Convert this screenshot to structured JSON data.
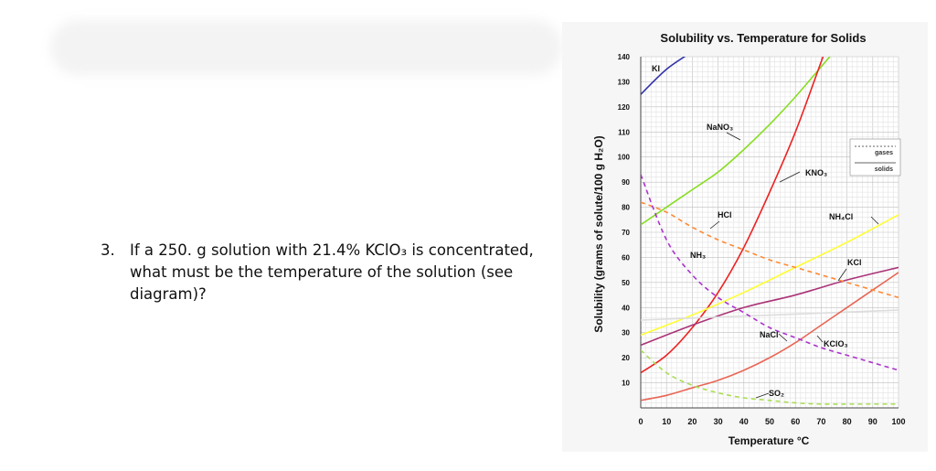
{
  "question": {
    "number": "3.",
    "text": "If a 250. g solution with 21.4% KClO₃ is concentrated, what must be the temperature of the solution (see diagram)?"
  },
  "chart_data": {
    "type": "line",
    "title": "Solubility vs. Temperature for Solids",
    "xlabel": "Temperature °C",
    "ylabel": "Solubility (grams of solute/100 g H₂O)",
    "xlim": [
      0,
      100
    ],
    "ylim": [
      0,
      140
    ],
    "x_ticks": [
      "0",
      "10",
      "20",
      "30",
      "40",
      "50",
      "60",
      "70",
      "80",
      "90",
      "100"
    ],
    "y_ticks": [
      "10",
      "20",
      "30",
      "40",
      "50",
      "60",
      "70",
      "80",
      "90",
      "100",
      "110",
      "120",
      "130",
      "140"
    ],
    "grid": true,
    "legend": {
      "placement": "top-right",
      "entries": [
        {
          "label": "gases",
          "style": "dashed"
        },
        {
          "label": "solids",
          "style": "solid"
        }
      ]
    },
    "series": [
      {
        "name": "KI",
        "color": "#3333aa",
        "dashed": false,
        "x": [
          0,
          10,
          20
        ],
        "y": [
          125,
          135,
          142
        ]
      },
      {
        "name": "NaNO₃",
        "color": "#88dd22",
        "dashed": false,
        "x": [
          0,
          10,
          20,
          30,
          40,
          50,
          60,
          70,
          80
        ],
        "y": [
          73,
          80,
          87,
          94,
          103,
          113,
          124,
          136,
          148
        ]
      },
      {
        "name": "KNO₃",
        "color": "#ee2222",
        "dashed": false,
        "x": [
          0,
          10,
          20,
          30,
          40,
          50,
          60,
          70,
          75
        ],
        "y": [
          14,
          21,
          32,
          46,
          64,
          86,
          110,
          138,
          152
        ]
      },
      {
        "name": "NH₄Cl",
        "color": "#ffff33",
        "dashed": false,
        "x": [
          0,
          20,
          40,
          60,
          80,
          100
        ],
        "y": [
          29,
          37,
          46,
          56,
          66,
          77
        ]
      },
      {
        "name": "KCl",
        "color": "#aa3377",
        "dashed": false,
        "x": [
          0,
          20,
          40,
          60,
          80,
          100
        ],
        "y": [
          25,
          33,
          40,
          45,
          51,
          56
        ]
      },
      {
        "name": "NaCl",
        "color": "#dddddd",
        "dashed": false,
        "x": [
          0,
          100
        ],
        "y": [
          35,
          39
        ]
      },
      {
        "name": "KClO₃",
        "color": "#e86655",
        "dashed": false,
        "x": [
          0,
          10,
          20,
          30,
          40,
          50,
          60,
          70,
          80,
          90,
          100
        ],
        "y": [
          3,
          5,
          8,
          11,
          15,
          20,
          26,
          33,
          40,
          47,
          54
        ]
      },
      {
        "name": "HCl",
        "color": "#ff8833",
        "dashed": true,
        "x": [
          0,
          10,
          20,
          30,
          40,
          50,
          60,
          70,
          80,
          90,
          100
        ],
        "y": [
          82,
          78,
          72,
          67,
          63,
          59,
          56,
          53,
          50,
          47,
          44
        ]
      },
      {
        "name": "NH₃",
        "color": "#aa33cc",
        "dashed": true,
        "x": [
          0,
          10,
          20,
          30,
          40,
          50,
          60,
          70,
          80,
          90,
          100
        ],
        "y": [
          93,
          67,
          53,
          44,
          38,
          32,
          28,
          24,
          21,
          18,
          15
        ]
      },
      {
        "name": "SO₂",
        "color": "#aadd55",
        "dashed": true,
        "x": [
          0,
          10,
          20,
          30,
          40,
          50,
          60,
          70,
          80,
          90,
          100
        ],
        "y": [
          23,
          14,
          9,
          6,
          4,
          3,
          2,
          1.5,
          1.5,
          1.5,
          1.5
        ]
      }
    ],
    "labels": [
      {
        "text": "KI",
        "series": "KI"
      },
      {
        "text": "NaNO₃",
        "series": "NaNO₃"
      },
      {
        "text": "KNO₃",
        "series": "KNO₃"
      },
      {
        "text": "HCl",
        "series": "HCl"
      },
      {
        "text": "NH₄Cl",
        "series": "NH₄Cl"
      },
      {
        "text": "NH₃",
        "series": "NH₃"
      },
      {
        "text": "KCl",
        "series": "KCl"
      },
      {
        "text": "NaCl",
        "series": "NaCl"
      },
      {
        "text": "KClO₃",
        "series": "KClO₃"
      },
      {
        "text": "SO₂",
        "series": "SO₂"
      }
    ]
  }
}
